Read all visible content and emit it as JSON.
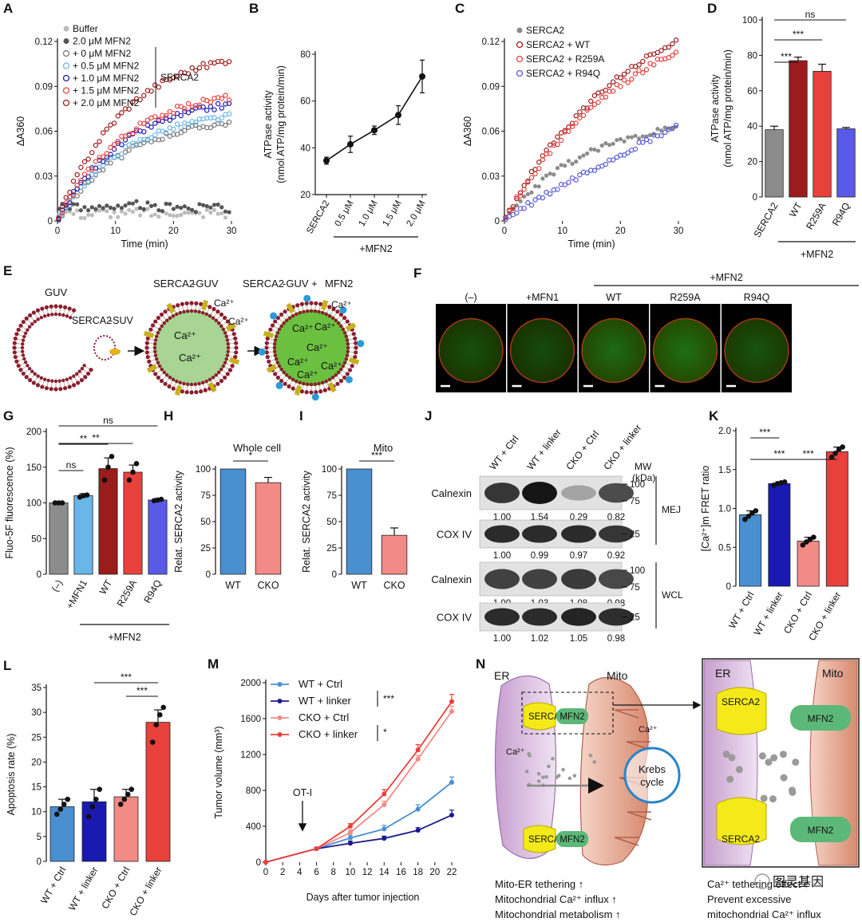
{
  "colors": {
    "gray": "#8c8c8c",
    "darkgray": "#555555",
    "lightgray": "#bdbdbd",
    "darkred": "#9b1c1c",
    "red": "#e8413c",
    "lightred": "#f08a85",
    "blue": "#3f5fd8",
    "lightblue": "#69b7e8",
    "navy": "#1a1a8c",
    "steelblue": "#4a8fd0",
    "pink": "#f28b86",
    "brown": "#b5781b",
    "green": "#2e9b3e",
    "cyan": "#2a9bd6",
    "purple": "#8a4a9c",
    "mito": "#c86a4a"
  },
  "panels": {
    "A": {
      "letter": "A",
      "chart_data": {
        "type": "scatter",
        "xlabel": "Time (min)",
        "ylabel": "ΔA360",
        "xlim": [
          0,
          30
        ],
        "ylim": [
          0,
          0.12
        ],
        "xticks": [
          "0",
          "10",
          "20",
          "30"
        ],
        "yticks": [
          "0",
          "0.03",
          "0.06",
          "0.09",
          "0.12"
        ],
        "legend_bracket": "SERCA2",
        "series": [
          {
            "name": "Buffer",
            "style": "filled",
            "color": "#bdbdbd",
            "shape": "flat",
            "end": 0.006
          },
          {
            "name": "2.0 μM MFN2",
            "style": "filled",
            "color": "#555555",
            "shape": "flat",
            "end": 0.011
          },
          {
            "name": "+ 0 μM MFN2",
            "style": "open",
            "color": "#777777",
            "shape": "sat",
            "end": 0.066
          },
          {
            "name": "+ 0.5 μM MFN2",
            "style": "open",
            "color": "#69b7e8",
            "shape": "sat",
            "end": 0.07
          },
          {
            "name": "+ 1.0 μM MFN2",
            "style": "open",
            "color": "#1a1ab0",
            "shape": "sat",
            "end": 0.078
          },
          {
            "name": "+ 1.5 μM MFN2",
            "style": "open",
            "color": "#e8413c",
            "shape": "sat",
            "end": 0.083
          },
          {
            "name": "+ 2.0 μM MFN2",
            "style": "open",
            "color": "#9b1c1c",
            "shape": "sat",
            "end": 0.108
          }
        ]
      }
    },
    "B": {
      "letter": "B",
      "chart_data": {
        "type": "line",
        "ylabel_lines": [
          "ATPase activity",
          "(nmol ATP/mg protein/min)"
        ],
        "ylim": [
          20,
          80
        ],
        "yticks": [
          "20",
          "40",
          "60",
          "80"
        ],
        "categories": [
          "SERCA2",
          "0.5 μM",
          "1.0 μM",
          "1.5 μM",
          "2.0 μM"
        ],
        "values": [
          34.5,
          41.5,
          47.5,
          54,
          70.5
        ],
        "errors": [
          1.5,
          3.5,
          1.8,
          4,
          7
        ],
        "group_label": "+MFN2"
      }
    },
    "C": {
      "letter": "C",
      "chart_data": {
        "type": "scatter",
        "xlabel": "Time (min)",
        "ylabel": "ΔA360",
        "xlim": [
          0,
          30
        ],
        "ylim": [
          0,
          0.12
        ],
        "xticks": [
          "0",
          "10",
          "20",
          "30"
        ],
        "yticks": [
          "0",
          "0.03",
          "0.06",
          "0.09",
          "0.12"
        ],
        "series": [
          {
            "name": "SERCA2",
            "style": "filled",
            "color": "#8c8c8c",
            "shape": "sub",
            "end": 0.062
          },
          {
            "name": "SERCA2 + WT",
            "style": "open",
            "color": "#9b1c1c",
            "shape": "lin",
            "end": 0.12
          },
          {
            "name": "SERCA2 + R259A",
            "style": "open",
            "color": "#e8413c",
            "shape": "lin",
            "end": 0.113
          },
          {
            "name": "SERCA2 + R94Q",
            "style": "open",
            "color": "#5a5ad8",
            "shape": "slow",
            "end": 0.064
          }
        ]
      }
    },
    "D": {
      "letter": "D",
      "chart_data": {
        "type": "bar",
        "ylabel_lines": [
          "ATPase activity",
          "(nmol ATP/mg protein/min)"
        ],
        "ylim": [
          0,
          100
        ],
        "yticks": [
          "0",
          "20",
          "40",
          "60",
          "80",
          "100"
        ],
        "categories": [
          "SERCA2",
          "WT",
          "R259A",
          "R94Q"
        ],
        "values": [
          38,
          77,
          71,
          38.5
        ],
        "errors": [
          2,
          2,
          4,
          0.8
        ],
        "bar_colors": [
          "#8c8c8c",
          "#9b1c1c",
          "#e8413c",
          "#5a5ae8"
        ],
        "group_label": "+MFN2",
        "significance": [
          {
            "from": 0,
            "to": 1,
            "label": "***"
          },
          {
            "from": 0,
            "to": 2,
            "label": "***"
          },
          {
            "from": 0,
            "to": 3,
            "label": "ns"
          }
        ]
      }
    },
    "E": {
      "letter": "E",
      "labels": {
        "guv": "GUV",
        "serca2_suv_a": "SERCA2",
        "serca2_suv_b": "-SUV",
        "serca2_guv_a": "SERCA2",
        "serca2_guv_b": "-GUV",
        "serca2_guv_mfn2_a": "SERCA2",
        "serca2_guv_mfn2_b": "-GUV + ",
        "serca2_guv_mfn2_c": "MFN2",
        "ca": "Ca²⁺"
      }
    },
    "F": {
      "letter": "F",
      "group_label": "+MFN2",
      "images": [
        {
          "label": "(–)",
          "intensity": 0.55
        },
        {
          "label": "+MFN1",
          "intensity": 0.5
        },
        {
          "label": "WT",
          "intensity": 0.85
        },
        {
          "label": "R259A",
          "intensity": 0.9
        },
        {
          "label": "R94Q",
          "intensity": 0.6
        }
      ]
    },
    "G": {
      "letter": "G",
      "chart_data": {
        "type": "bar",
        "ylabel": "Fluo-5F fluorescence (%)",
        "ylim": [
          0,
          200
        ],
        "yticks": [
          "0",
          "50",
          "100",
          "150",
          "200"
        ],
        "categories": [
          "(–)",
          "+MFN1",
          "WT",
          "R259A",
          "R94Q"
        ],
        "values": [
          100,
          110,
          148,
          143,
          104
        ],
        "errors": [
          1,
          3,
          15,
          10,
          2
        ],
        "points": [
          [
            100,
            100,
            100
          ],
          [
            108,
            110,
            111
          ],
          [
            132,
            150,
            165
          ],
          [
            132,
            143,
            155
          ],
          [
            103,
            104,
            105
          ]
        ],
        "bar_colors": [
          "#8c8c8c",
          "#69b7e8",
          "#9b1c1c",
          "#e8413c",
          "#5a5ae8"
        ],
        "group_label": "+MFN2",
        "significance": [
          {
            "from": 0,
            "to": 1,
            "label": "ns"
          },
          {
            "from": 0,
            "to": 2,
            "label": "**"
          },
          {
            "from": 0,
            "to": 3,
            "label": "**"
          },
          {
            "from": 0,
            "to": 4,
            "label": "ns"
          }
        ]
      }
    },
    "H": {
      "letter": "H",
      "chart_data": {
        "type": "bar",
        "title": "Whole cell",
        "ylabel": "Relat. SERCA2 activity",
        "ylim": [
          0,
          100
        ],
        "yticks": [
          "0",
          "25",
          "50",
          "75",
          "100"
        ],
        "categories": [
          "WT",
          "CKO"
        ],
        "values": [
          100,
          87
        ],
        "errors": [
          0,
          5
        ],
        "bar_colors": [
          "#4a8fd0",
          "#f28b86"
        ],
        "significance": [
          {
            "from": 0,
            "to": 1,
            "label": "*"
          }
        ]
      }
    },
    "I": {
      "letter": "I",
      "chart_data": {
        "type": "bar",
        "title": "Mito",
        "ylabel": "Relat. SERCA2 activity",
        "ylim": [
          0,
          100
        ],
        "yticks": [
          "0",
          "25",
          "50",
          "75",
          "100"
        ],
        "categories": [
          "WT",
          "CKO"
        ],
        "values": [
          100,
          37
        ],
        "errors": [
          0,
          7
        ],
        "bar_colors": [
          "#4a8fd0",
          "#f28b86"
        ],
        "significance": [
          {
            "from": 0,
            "to": 1,
            "label": "***"
          }
        ]
      }
    },
    "J": {
      "letter": "J",
      "lanes": [
        "WT + Ctrl",
        "WT + linker",
        "CKO + Ctrl",
        "CKO + linker"
      ],
      "mw_header": [
        "MW",
        "(kDa)"
      ],
      "blots": [
        {
          "label": "Calnexin",
          "values": [
            "1.00",
            "1.54",
            "0.29",
            "0.82"
          ],
          "mw": [
            "100",
            "75"
          ],
          "intensity": [
            0.8,
            0.95,
            0.3,
            0.7
          ]
        },
        {
          "label": "COX IV",
          "values": [
            "1.00",
            "0.99",
            "0.97",
            "0.92"
          ],
          "mw": [
            "25"
          ],
          "intensity": [
            0.85,
            0.85,
            0.85,
            0.8
          ]
        },
        {
          "label": "Calnexin",
          "values": [
            "1.00",
            "1.03",
            "1.08",
            "0.98"
          ],
          "mw": [
            "100",
            "75"
          ],
          "intensity": [
            0.75,
            0.75,
            0.78,
            0.72
          ]
        },
        {
          "label": "COX IV",
          "values": [
            "1.00",
            "1.02",
            "1.05",
            "0.98"
          ],
          "mw": [
            "25"
          ],
          "intensity": [
            0.85,
            0.85,
            0.88,
            0.84
          ]
        }
      ],
      "groups": [
        "MEJ",
        "WCL"
      ]
    },
    "K": {
      "letter": "K",
      "chart_data": {
        "type": "bar",
        "ylabel": "[Ca²⁺]m FRET ratio",
        "ylim": [
          0,
          2.0
        ],
        "yticks": [
          "0",
          "0.5",
          "1.0",
          "1.5",
          "2.0"
        ],
        "categories": [
          "WT + Ctrl",
          "WT + linker",
          "CKO + Ctrl",
          "CKO + linker"
        ],
        "values": [
          0.92,
          1.32,
          0.58,
          1.73
        ],
        "errors": [
          0.05,
          0.02,
          0.05,
          0.06
        ],
        "points": [
          [
            0.86,
            0.9,
            0.94,
            0.97
          ],
          [
            1.3,
            1.32,
            1.33,
            1.34
          ],
          [
            0.53,
            0.57,
            0.6,
            0.63
          ],
          [
            1.66,
            1.71,
            1.76,
            1.79
          ]
        ],
        "bar_colors": [
          "#4a8fd0",
          "#1a1ab0",
          "#f28b86",
          "#e8413c"
        ],
        "significance": [
          {
            "from": 0,
            "to": 1,
            "label": "***"
          },
          {
            "from": 1,
            "to": 3,
            "label": "***"
          },
          {
            "from": 0,
            "to": 2,
            "label": "***"
          }
        ]
      }
    },
    "L": {
      "letter": "L",
      "chart_data": {
        "type": "bar",
        "ylabel": "Apoptosis rate (%)",
        "ylim": [
          0,
          35
        ],
        "yticks": [
          "0",
          "5",
          "10",
          "15",
          "20",
          "25",
          "30",
          "35"
        ],
        "categories": [
          "WT + Ctrl",
          "WT + linker",
          "CKO + Ctrl",
          "CKO + linker"
        ],
        "values": [
          11,
          12,
          13,
          28
        ],
        "errors": [
          1.5,
          2.5,
          1.5,
          2.5
        ],
        "points": [
          [
            9.5,
            10.5,
            11.5,
            12.5
          ],
          [
            9,
            11,
            12.5,
            14.5
          ],
          [
            11.5,
            12.5,
            13.5,
            14.5
          ],
          [
            24,
            27.5,
            29.5,
            31
          ]
        ],
        "bar_colors": [
          "#4a8fd0",
          "#1a1ab0",
          "#f28b86",
          "#e8413c"
        ],
        "significance": [
          {
            "from": 1,
            "to": 3,
            "label": "***"
          },
          {
            "from": 2,
            "to": 3,
            "label": "***"
          }
        ]
      }
    },
    "M": {
      "letter": "M",
      "chart_data": {
        "type": "line",
        "xlabel": "Days after tumor injection",
        "ylabel": "Tumor volume (mm³)",
        "xlim": [
          0,
          22
        ],
        "ylim": [
          0,
          2000
        ],
        "xticks": [
          "0",
          "2",
          "4",
          "6",
          "8",
          "10",
          "12",
          "14",
          "16",
          "18",
          "20",
          "22"
        ],
        "yticks": [
          "0",
          "400",
          "800",
          "1200",
          "1600",
          "2000"
        ],
        "x": [
          0,
          6,
          10,
          14,
          18,
          22
        ],
        "annotation": "OT-I",
        "annotation_x": 4,
        "series": [
          {
            "name": "WT + Ctrl",
            "color": "#4a8fd0",
            "values": [
              0,
              150,
              270,
              370,
              590,
              890
            ],
            "errors": [
              0,
              15,
              30,
              40,
              50,
              60
            ]
          },
          {
            "name": "WT + linker",
            "color": "#1a1a8c",
            "values": [
              0,
              150,
              210,
              265,
              355,
              525
            ],
            "errors": [
              0,
              15,
              25,
              25,
              30,
              55
            ]
          },
          {
            "name": "CKO + Ctrl",
            "color": "#f28b86",
            "values": [
              0,
              150,
              330,
              640,
              1150,
              1680
            ],
            "errors": [
              0,
              15,
              30,
              40,
              40,
              60
            ]
          },
          {
            "name": "CKO + linker",
            "color": "#e8413c",
            "values": [
              0,
              150,
              400,
              760,
              1250,
              1790
            ],
            "errors": [
              0,
              15,
              30,
              50,
              60,
              80
            ]
          }
        ],
        "significance": [
          "***",
          "*"
        ]
      }
    },
    "N": {
      "letter": "N",
      "labels": {
        "er": "ER",
        "mito": "Mito",
        "serca2": "SERCA2",
        "mfn2": "MFN2",
        "ca": "Ca²⁺",
        "krebs1": "Krebs",
        "krebs2": "cycle"
      },
      "left_notes": [
        "Mito-ER tethering ↑",
        "Mitochondrial Ca²⁺ influx ↑",
        "Mitochondrial metabolism ↑"
      ],
      "right_notes": [
        "Ca²⁺ tethering effect ↑",
        "Prevent excessive",
        "mitochondrial Ca²⁺ influx"
      ]
    },
    "watermark": {
      "text": "图灵基因"
    }
  }
}
